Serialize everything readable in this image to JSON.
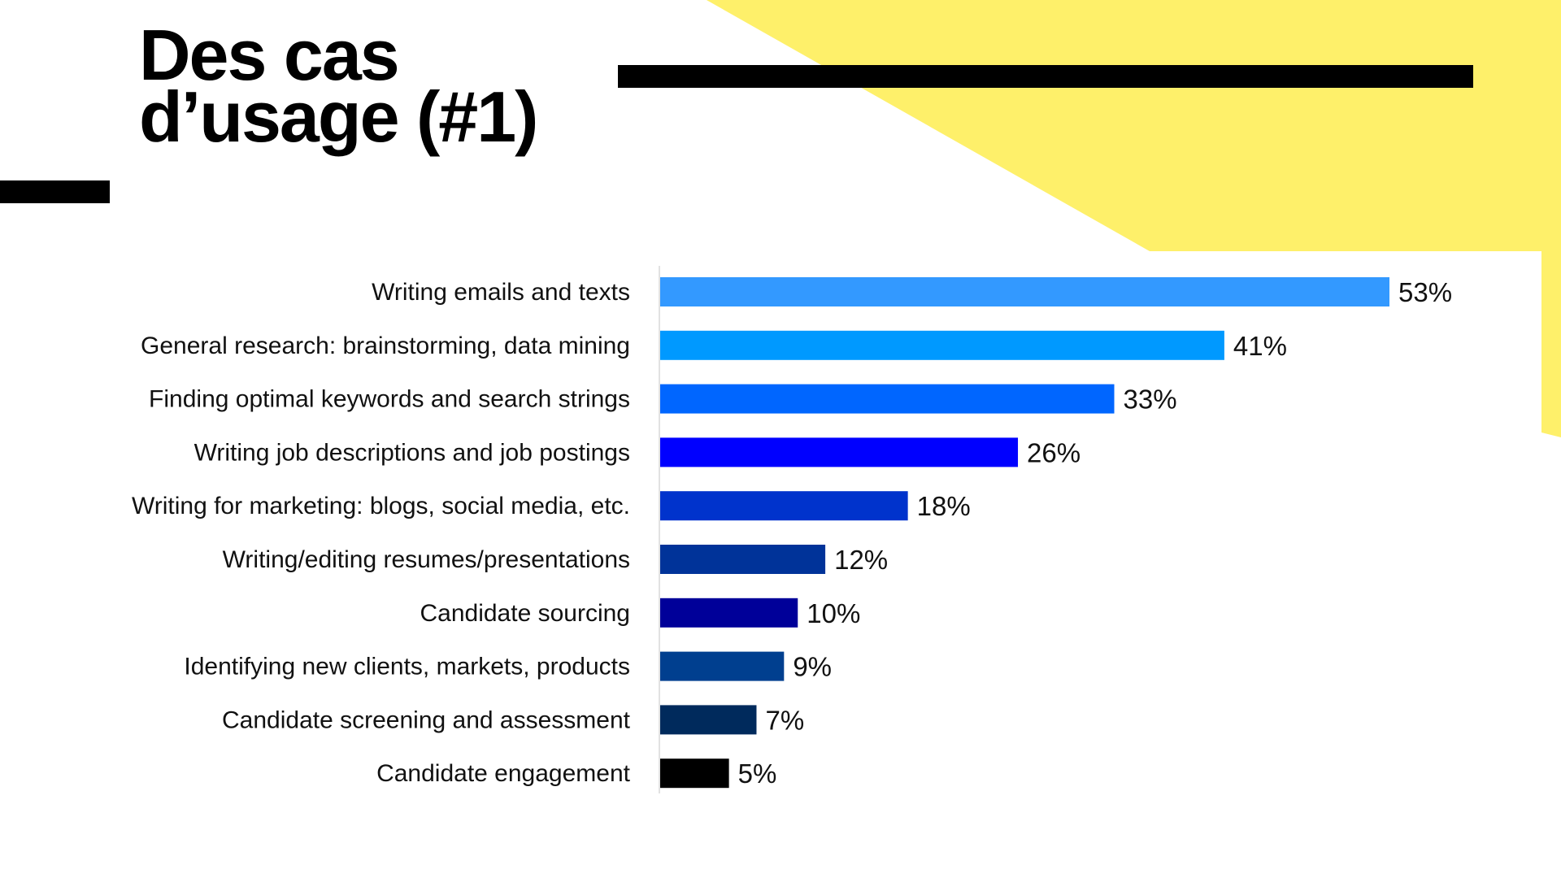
{
  "slide": {
    "title_line1": "Des cas",
    "title_line2": "d’usage (#1)",
    "accent_color": "#fef06a"
  },
  "chart_data": {
    "type": "bar",
    "orientation": "horizontal",
    "categories": [
      "Writing emails and texts",
      "General research: brainstorming, data mining",
      "Finding optimal keywords and search strings",
      "Writing job descriptions and job postings",
      "Writing for marketing: blogs, social media, etc.",
      "Writing/editing resumes/presentations",
      "Candidate sourcing",
      "Identifying new clients, markets, products",
      "Candidate screening and assessment",
      "Candidate engagement"
    ],
    "values": [
      53,
      41,
      33,
      26,
      18,
      12,
      10,
      9,
      7,
      5
    ],
    "data_labels": [
      "53%",
      "41%",
      "33%",
      "26%",
      "18%",
      "12%",
      "10%",
      "9%",
      "7%",
      "5%"
    ],
    "colors": [
      "#3399ff",
      "#0099ff",
      "#0066ff",
      "#0000ff",
      "#0033cc",
      "#003399",
      "#000099",
      "#003f8f",
      "#002a5c",
      "#000000"
    ],
    "unit": "%",
    "xlim": [
      0,
      53
    ],
    "grid": false,
    "legend": "none"
  }
}
